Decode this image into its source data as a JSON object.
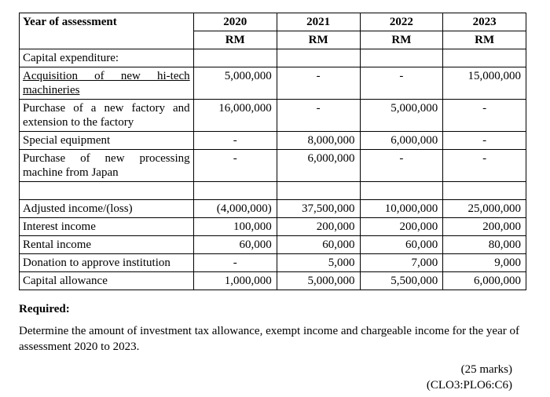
{
  "table": {
    "header_label": "Year of assessment",
    "years": [
      "2020",
      "2021",
      "2022",
      "2023"
    ],
    "unit": "RM",
    "section1_title": "Capital expenditure:",
    "rows1": [
      {
        "label": "Acquisition of new hi-tech machineries",
        "v": [
          "5,000,000",
          "-",
          "-",
          "15,000,000"
        ]
      },
      {
        "label": "Purchase of a new factory and extension to the factory",
        "v": [
          "16,000,000",
          "-",
          "5,000,000",
          "-"
        ]
      },
      {
        "label": "Special equipment",
        "v": [
          "-",
          "8,000,000",
          "6,000,000",
          "-"
        ]
      },
      {
        "label": "Purchase of new processing machine from Japan",
        "v": [
          "-",
          "6,000,000",
          "-",
          "-"
        ]
      }
    ],
    "rows2": [
      {
        "label": "Adjusted income/(loss)",
        "v": [
          "(4,000,000)",
          "37,500,000",
          "10,000,000",
          "25,000,000"
        ]
      },
      {
        "label": "Interest income",
        "v": [
          "100,000",
          "200,000",
          "200,000",
          "200,000"
        ]
      },
      {
        "label": "Rental income",
        "v": [
          "60,000",
          "60,000",
          "60,000",
          "80,000"
        ]
      },
      {
        "label": "Donation to approve institution",
        "v": [
          "-",
          "5,000",
          "7,000",
          "9,000"
        ]
      },
      {
        "label": "Capital allowance",
        "v": [
          "1,000,000",
          "5,000,000",
          "5,500,000",
          "6,000,000"
        ]
      }
    ]
  },
  "required_label": "Required:",
  "required_text": "Determine the amount of investment tax allowance, exempt income and chargeable income for the year of assessment 2020 to 2023.",
  "marks": "(25 marks)",
  "clo": "(CLO3:PLO6:C6)"
}
